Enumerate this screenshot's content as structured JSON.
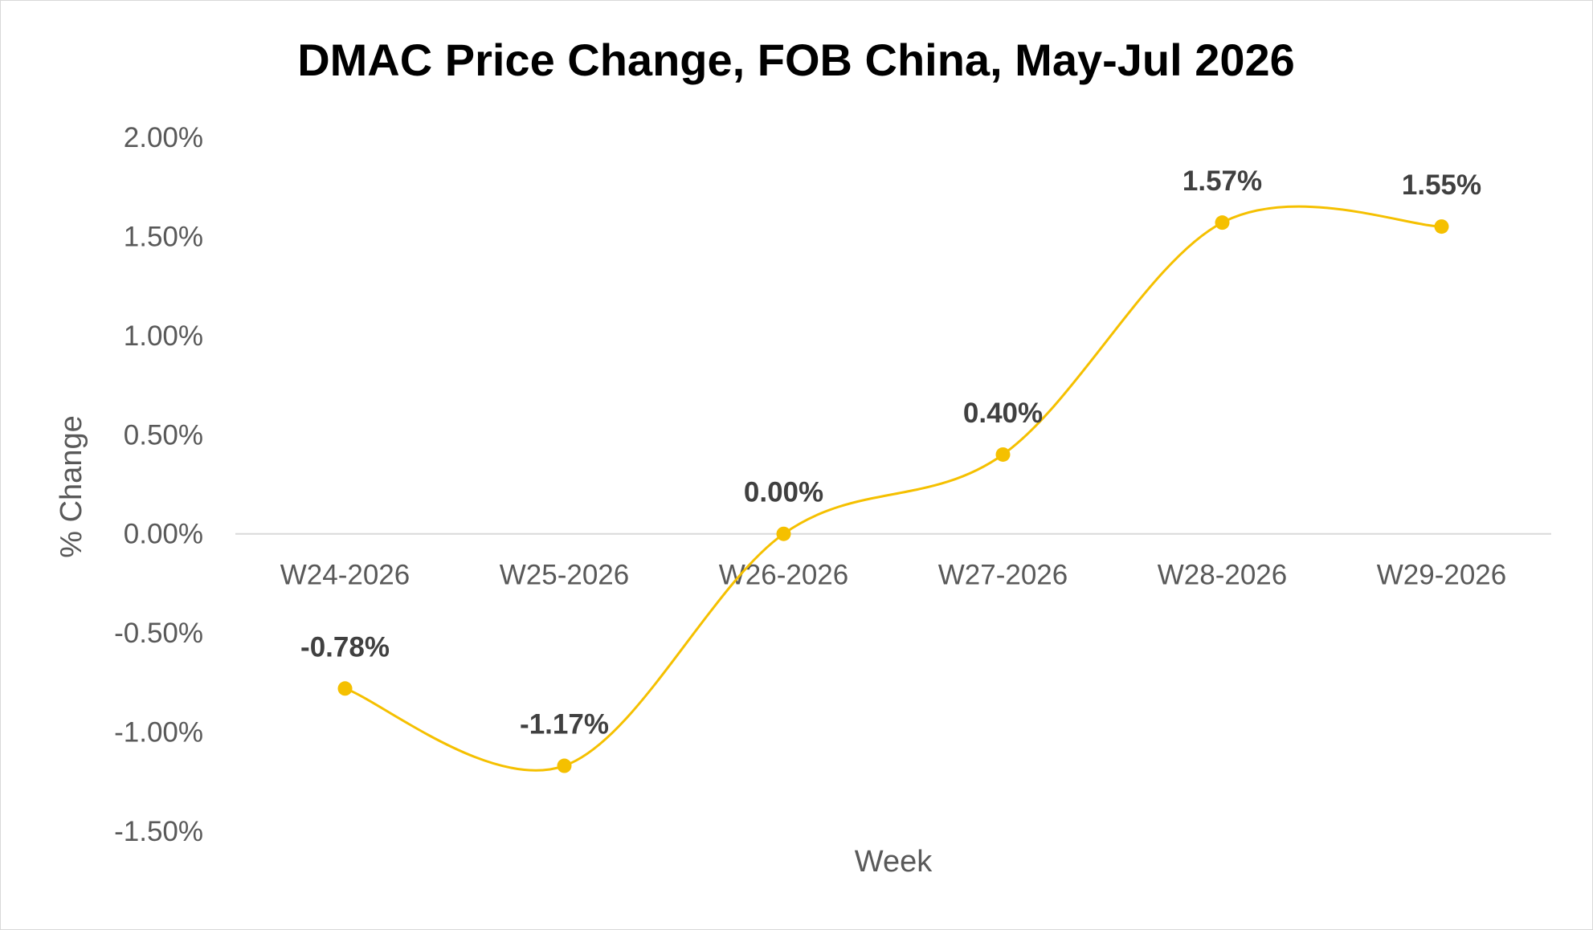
{
  "chart_data": {
    "type": "line",
    "title": "DMAC Price Change, FOB China,  May-Jul 2026",
    "xlabel": "Week",
    "ylabel": "% Change",
    "categories": [
      "W24-2026",
      "W25-2026",
      "W26-2026",
      "W27-2026",
      "W28-2026",
      "W29-2026"
    ],
    "series": [
      {
        "values": [
          -0.78,
          -1.17,
          0.0,
          0.4,
          1.57,
          1.55
        ],
        "data_labels": [
          "-0.78%",
          "-1.17%",
          "0.00%",
          "0.40%",
          "1.57%",
          "1.55%"
        ]
      }
    ],
    "ylim": [
      -1.5,
      2.0
    ],
    "y_ticks": [
      2.0,
      1.5,
      1.0,
      0.5,
      0.0,
      -0.5,
      -1.0,
      -1.5
    ],
    "y_tick_labels": [
      "2.00%",
      "1.50%",
      "1.00%",
      "0.50%",
      "0.00%",
      "-0.50%",
      "-1.00%",
      "-1.50%"
    ],
    "smoothed": true,
    "gridlines": false,
    "legend": "none",
    "colors": {
      "line": "#F5C000",
      "marker": "#F5C000",
      "zero_axis": "#d9d9d9"
    }
  }
}
